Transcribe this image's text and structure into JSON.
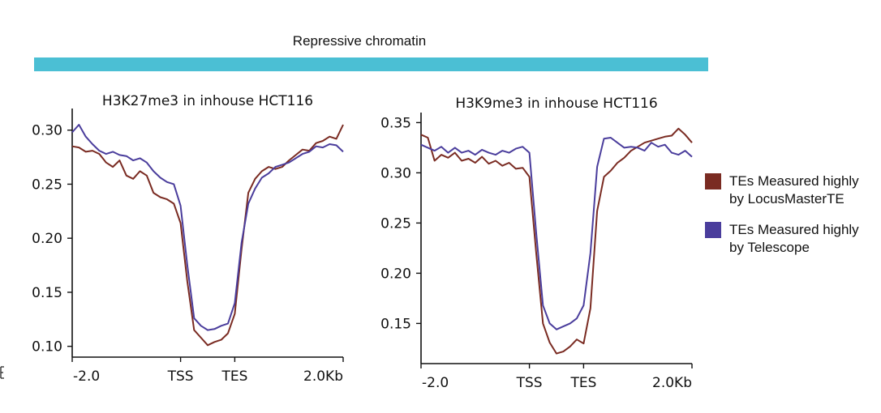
{
  "banner": {
    "title": "Repressive chromatin",
    "color": "#4bbfd4"
  },
  "legend": {
    "items": [
      {
        "label_line1": "TEs Measured highly",
        "label_line2": "by LocusMasterTE",
        "color": "#7a2b22"
      },
      {
        "label_line1": "TEs Measured highly",
        "label_line2": "by Telescope",
        "color": "#4a3d9c"
      }
    ]
  },
  "chart_data": [
    {
      "type": "line",
      "title": "H3K27me3 in inhouse HCT116",
      "xlabel": "",
      "ylabel": "",
      "x_tick_labels": [
        "-2.0",
        "TSS",
        "TES",
        "2.0Kb"
      ],
      "x_ticks": [
        0,
        40,
        60,
        100
      ],
      "xlim": [
        0,
        100
      ],
      "ylim": [
        0.09,
        0.32
      ],
      "y_ticks": [
        0.1,
        0.15,
        0.2,
        0.25,
        0.3
      ],
      "y_tick_labels": [
        "0.10",
        "0.15",
        "0.20",
        "0.25",
        "0.30"
      ],
      "grid": false,
      "x": [
        0,
        2.5,
        5,
        7.5,
        10,
        12.5,
        15,
        17.5,
        20,
        22.5,
        25,
        27.5,
        30,
        32.5,
        35,
        37.5,
        40,
        42.5,
        45,
        47.5,
        50,
        52.5,
        55,
        57.5,
        60,
        62.5,
        65,
        67.5,
        70,
        72.5,
        75,
        77.5,
        80,
        82.5,
        85,
        87.5,
        90,
        92.5,
        95,
        97.5,
        100
      ],
      "series": [
        {
          "name": "TEs Measured highly by LocusMasterTE",
          "color": "#7a2b22",
          "values": [
            0.285,
            0.284,
            0.28,
            0.281,
            0.278,
            0.27,
            0.266,
            0.272,
            0.258,
            0.255,
            0.262,
            0.258,
            0.242,
            0.238,
            0.236,
            0.232,
            0.214,
            0.16,
            0.115,
            0.108,
            0.101,
            0.104,
            0.106,
            0.112,
            0.13,
            0.19,
            0.242,
            0.255,
            0.262,
            0.266,
            0.264,
            0.266,
            0.272,
            0.277,
            0.282,
            0.281,
            0.288,
            0.29,
            0.294,
            0.292,
            0.305
          ]
        },
        {
          "name": "TEs Measured highly by Telescope",
          "color": "#4a3d9c",
          "values": [
            0.298,
            0.305,
            0.294,
            0.287,
            0.281,
            0.278,
            0.28,
            0.277,
            0.276,
            0.272,
            0.274,
            0.27,
            0.262,
            0.256,
            0.252,
            0.25,
            0.23,
            0.175,
            0.126,
            0.119,
            0.115,
            0.116,
            0.119,
            0.121,
            0.14,
            0.196,
            0.232,
            0.246,
            0.256,
            0.26,
            0.266,
            0.268,
            0.27,
            0.274,
            0.278,
            0.28,
            0.285,
            0.284,
            0.287,
            0.286,
            0.28
          ]
        }
      ]
    },
    {
      "type": "line",
      "title": "H3K9me3 in inhouse HCT116",
      "xlabel": "",
      "ylabel": "",
      "x_tick_labels": [
        "-2.0",
        "TSS",
        "TES",
        "2.0Kb"
      ],
      "x_ticks": [
        0,
        40,
        60,
        100
      ],
      "xlim": [
        0,
        100
      ],
      "ylim": [
        0.11,
        0.36
      ],
      "y_ticks": [
        0.15,
        0.2,
        0.25,
        0.3,
        0.35
      ],
      "y_tick_labels": [
        "0.15",
        "0.20",
        "0.25",
        "0.30",
        "0.35"
      ],
      "grid": false,
      "x": [
        0,
        2.5,
        5,
        7.5,
        10,
        12.5,
        15,
        17.5,
        20,
        22.5,
        25,
        27.5,
        30,
        32.5,
        35,
        37.5,
        40,
        42.5,
        45,
        47.5,
        50,
        52.5,
        55,
        57.5,
        60,
        62.5,
        65,
        67.5,
        70,
        72.5,
        75,
        77.5,
        80,
        82.5,
        85,
        87.5,
        90,
        92.5,
        95,
        97.5,
        100
      ],
      "series": [
        {
          "name": "TEs Measured highly by LocusMasterTE",
          "color": "#7a2b22",
          "values": [
            0.338,
            0.335,
            0.312,
            0.318,
            0.315,
            0.32,
            0.312,
            0.314,
            0.31,
            0.316,
            0.309,
            0.312,
            0.307,
            0.31,
            0.304,
            0.305,
            0.296,
            0.22,
            0.15,
            0.131,
            0.12,
            0.122,
            0.127,
            0.134,
            0.13,
            0.165,
            0.262,
            0.296,
            0.302,
            0.31,
            0.315,
            0.322,
            0.326,
            0.33,
            0.332,
            0.334,
            0.336,
            0.337,
            0.344,
            0.338,
            0.33
          ]
        },
        {
          "name": "TEs Measured highly by Telescope",
          "color": "#4a3d9c",
          "values": [
            0.328,
            0.325,
            0.322,
            0.326,
            0.32,
            0.325,
            0.32,
            0.322,
            0.318,
            0.323,
            0.32,
            0.318,
            0.322,
            0.32,
            0.324,
            0.326,
            0.32,
            0.24,
            0.168,
            0.15,
            0.144,
            0.147,
            0.15,
            0.155,
            0.168,
            0.22,
            0.306,
            0.334,
            0.335,
            0.33,
            0.325,
            0.326,
            0.325,
            0.322,
            0.33,
            0.326,
            0.328,
            0.32,
            0.318,
            0.322,
            0.316
          ]
        }
      ]
    }
  ]
}
